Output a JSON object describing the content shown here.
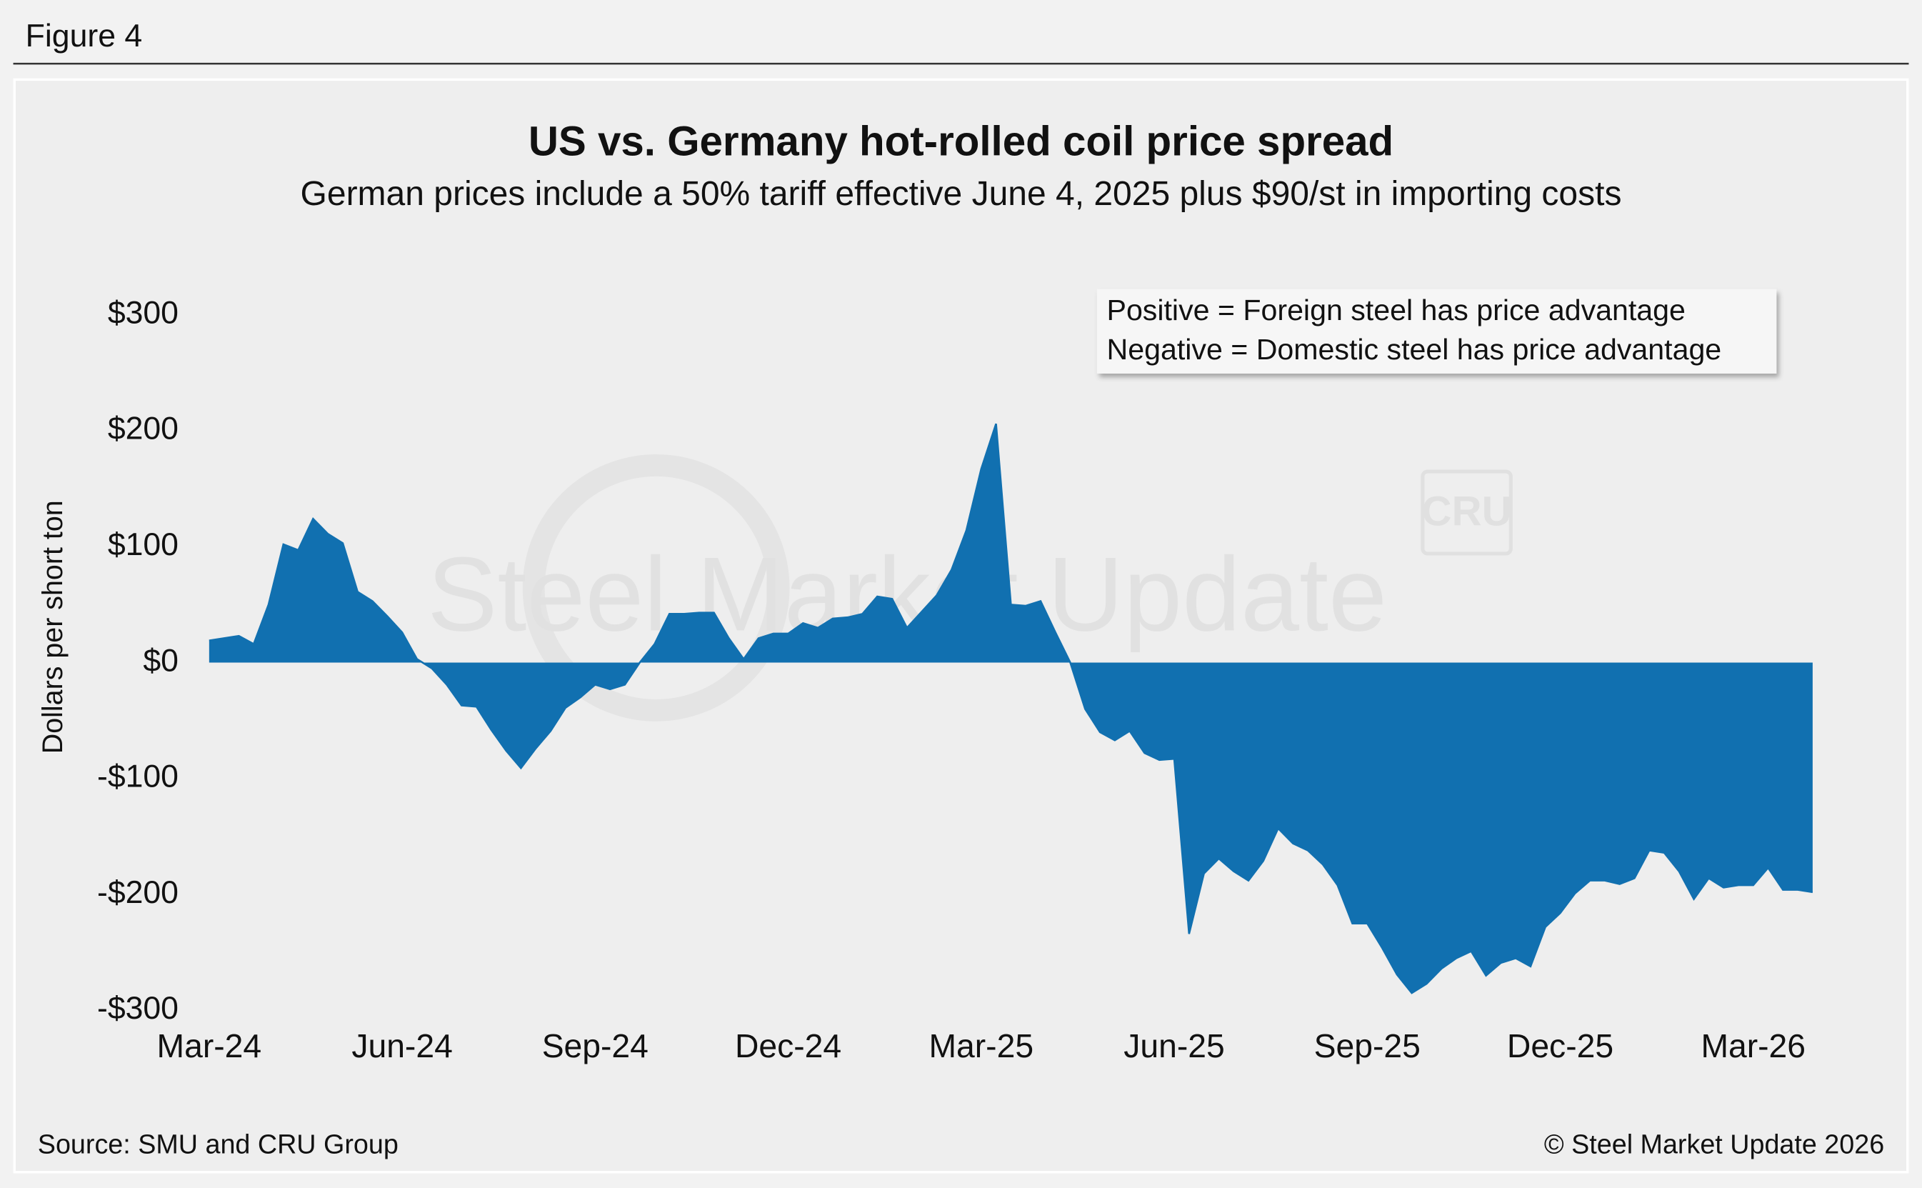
{
  "figure_label": "Figure 4",
  "chart_data": {
    "type": "area",
    "title": "US vs. Germany hot-rolled coil price spread",
    "subtitle": "German prices include a 50% tariff effective June 4, 2025 plus $90/st in importing costs",
    "y_label": "Dollars per short ton",
    "annotation": [
      "Positive = Foreign steel has price advantage",
      "Negative = Domestic steel has price advantage"
    ],
    "watermark": [
      "Steel Market Update",
      "CRU"
    ],
    "color": "#1170b0",
    "categories": [
      "Mar-24",
      null,
      null,
      null,
      null,
      null,
      null,
      null,
      null,
      null,
      null,
      null,
      null,
      "Jun-24",
      null,
      null,
      null,
      null,
      null,
      null,
      null,
      null,
      null,
      null,
      null,
      null,
      "Sep-24",
      null,
      null,
      null,
      null,
      null,
      null,
      null,
      null,
      null,
      null,
      null,
      null,
      "Dec-24",
      null,
      null,
      null,
      null,
      null,
      null,
      null,
      null,
      null,
      null,
      null,
      null,
      "Mar-25",
      null,
      null,
      null,
      null,
      null,
      null,
      null,
      null,
      null,
      null,
      null,
      null,
      "Jun-25",
      null,
      null,
      null,
      null,
      null,
      null,
      null,
      null,
      null,
      null,
      null,
      null,
      "Sep-25",
      null,
      null,
      null,
      null,
      null,
      null,
      null,
      null,
      null,
      null,
      null,
      null,
      "Dec-25",
      null,
      null,
      null,
      null,
      null,
      null,
      null,
      null,
      null,
      null,
      null,
      null,
      "Mar-26",
      null,
      null,
      null,
      null
    ],
    "values": [
      19,
      21,
      23,
      16,
      50,
      102,
      97,
      124,
      111,
      103,
      61,
      53,
      40,
      26,
      3,
      -5,
      -19,
      -37,
      -38,
      -58,
      -76,
      -91,
      -74,
      -59,
      -39,
      -30,
      -19,
      -23,
      -19,
      0,
      16,
      42,
      42,
      43,
      43,
      21,
      3,
      21,
      25,
      25,
      34,
      30,
      38,
      39,
      42,
      57,
      55,
      30,
      44,
      58,
      80,
      114,
      167,
      206,
      50,
      49,
      53,
      26,
      0,
      -40,
      -60,
      -67,
      -59,
      -78,
      -84,
      -83,
      -234,
      -182,
      -169,
      -180,
      -188,
      -171,
      -143,
      -156,
      -162,
      -174,
      -192,
      -225,
      -225,
      -246,
      -269,
      -285,
      -277,
      -264,
      -255,
      -249,
      -270,
      -259,
      -255,
      -262,
      -228,
      -216,
      -199,
      -188,
      -188,
      -191,
      -186,
      -162,
      -164,
      -180,
      -204,
      -186,
      -194,
      -192,
      -192,
      -177,
      -196,
      -196,
      -198
    ],
    "ylim": [
      -300,
      300
    ],
    "yticks": [
      {
        "value": -300,
        "label": "-$300"
      },
      {
        "value": -200,
        "label": "-$200"
      },
      {
        "value": -100,
        "label": "-$100"
      },
      {
        "value": 0,
        "label": "$0"
      },
      {
        "value": 100,
        "label": "$100"
      },
      {
        "value": 200,
        "label": "$200"
      },
      {
        "value": 300,
        "label": "$300"
      }
    ],
    "grid": false
  },
  "footer": {
    "source": "Source: SMU and CRU Group",
    "copyright": "© Steel Market Update 2026"
  }
}
